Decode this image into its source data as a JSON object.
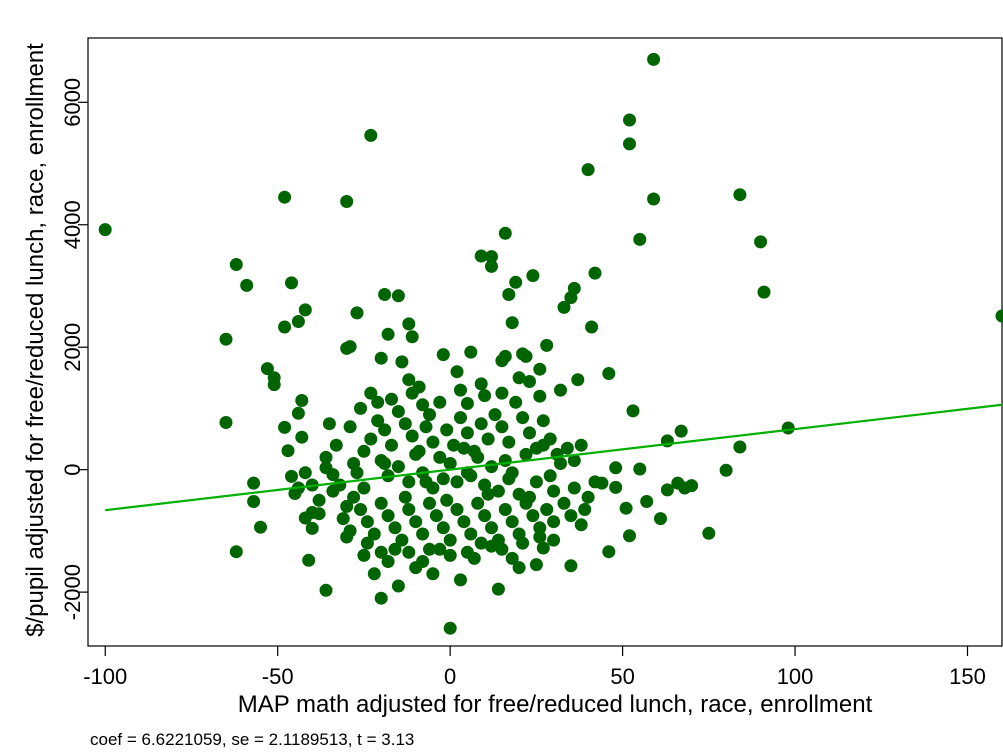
{
  "chart_data": {
    "type": "scatter",
    "title": "",
    "xlabel": "MAP math adjusted for free/reduced lunch, race, enrollment",
    "ylabel": "$/pupil adjusted for free/reduced lunch, race, enrollment",
    "note": "coef = 6.6221059, se = 2.1189513, t = 3.13",
    "xlim": [
      -105,
      160
    ],
    "ylim": [
      -2880,
      7050
    ],
    "xticks": [
      -100,
      -50,
      0,
      50,
      100,
      150
    ],
    "yticks": [
      -2000,
      0,
      2000,
      4000,
      6000
    ],
    "grid": false,
    "legend": "none",
    "colors": {
      "points": "#006400",
      "fit_line": "#00b000"
    },
    "fit_line": {
      "x": [
        -100,
        160
      ],
      "y": [
        -662,
        1060
      ]
    },
    "points": [
      [
        -100,
        3920
      ],
      [
        -62,
        3350
      ],
      [
        -59,
        3010
      ],
      [
        -65,
        2130
      ],
      [
        -65,
        770
      ],
      [
        -62,
        -1340
      ],
      [
        -57,
        -220
      ],
      [
        -57,
        -520
      ],
      [
        -55,
        -940
      ],
      [
        -53,
        1650
      ],
      [
        -51,
        1500
      ],
      [
        -51,
        1390
      ],
      [
        -48,
        4450
      ],
      [
        -46,
        3050
      ],
      [
        -44,
        2420
      ],
      [
        -42,
        2610
      ],
      [
        -48,
        2330
      ],
      [
        -48,
        690
      ],
      [
        -47,
        310
      ],
      [
        -46,
        -110
      ],
      [
        -45,
        -390
      ],
      [
        -44,
        920
      ],
      [
        -43,
        1130
      ],
      [
        -43,
        530
      ],
      [
        -42,
        -790
      ],
      [
        -41,
        -1480
      ],
      [
        -40,
        -960
      ],
      [
        -38,
        -720
      ],
      [
        -36,
        -1970
      ],
      [
        -35,
        750
      ],
      [
        -34,
        -80
      ],
      [
        -30,
        4380
      ],
      [
        -30,
        1980
      ],
      [
        -29,
        2010
      ],
      [
        -27,
        2560
      ],
      [
        -23,
        5460
      ],
      [
        -23,
        1250
      ],
      [
        -21,
        1100
      ],
      [
        -20,
        1820
      ],
      [
        -19,
        2860
      ],
      [
        -18,
        2210
      ],
      [
        -15,
        2840
      ],
      [
        -12,
        2380
      ],
      [
        -11,
        2170
      ],
      [
        -14,
        1760
      ],
      [
        -12,
        1470
      ],
      [
        -11,
        1250
      ],
      [
        -8,
        1060
      ],
      [
        -6,
        900
      ],
      [
        -2,
        1880
      ],
      [
        2,
        1600
      ],
      [
        5,
        1080
      ],
      [
        6,
        1920
      ],
      [
        9,
        3490
      ],
      [
        10,
        1210
      ],
      [
        12,
        3320
      ],
      [
        12,
        3480
      ],
      [
        15,
        1780
      ],
      [
        16,
        1850
      ],
      [
        16,
        3860
      ],
      [
        17,
        2860
      ],
      [
        18,
        2400
      ],
      [
        19,
        3060
      ],
      [
        21,
        1890
      ],
      [
        22,
        1850
      ],
      [
        23,
        1440
      ],
      [
        24,
        3170
      ],
      [
        26,
        1640
      ],
      [
        28,
        2030
      ],
      [
        33,
        2650
      ],
      [
        35,
        2810
      ],
      [
        36,
        2960
      ],
      [
        37,
        1470
      ],
      [
        40,
        4900
      ],
      [
        41,
        2330
      ],
      [
        42,
        3210
      ],
      [
        46,
        1570
      ],
      [
        52,
        5710
      ],
      [
        52,
        5320
      ],
      [
        53,
        960
      ],
      [
        55,
        3760
      ],
      [
        59,
        6700
      ],
      [
        59,
        4420
      ],
      [
        63,
        470
      ],
      [
        67,
        630
      ],
      [
        75,
        -1040
      ],
      [
        80,
        -10
      ],
      [
        84,
        4490
      ],
      [
        84,
        370
      ],
      [
        90,
        3720
      ],
      [
        91,
        2900
      ],
      [
        98,
        680
      ],
      [
        160,
        2510
      ],
      [
        0,
        -2590
      ],
      [
        -20,
        -2100
      ],
      [
        -15,
        -1900
      ],
      [
        -10,
        -1600
      ],
      [
        -5,
        -1700
      ],
      [
        3,
        -1800
      ],
      [
        14,
        -1950
      ],
      [
        20,
        -1600
      ],
      [
        25,
        -1550
      ],
      [
        35,
        -1570
      ],
      [
        46,
        -1340
      ],
      [
        52,
        -1080
      ],
      [
        -30,
        -1100
      ],
      [
        -25,
        -1400
      ],
      [
        -22,
        -1700
      ],
      [
        -18,
        -1500
      ],
      [
        -8,
        -1500
      ],
      [
        -3,
        -1300
      ],
      [
        7,
        -1450
      ],
      [
        12,
        -1250
      ],
      [
        18,
        -1450
      ],
      [
        27,
        -1280
      ],
      [
        30,
        -1150
      ],
      [
        44,
        -220
      ],
      [
        48,
        -290
      ],
      [
        51,
        -630
      ],
      [
        57,
        -520
      ],
      [
        61,
        -800
      ],
      [
        63,
        -330
      ],
      [
        66,
        -220
      ],
      [
        68,
        -300
      ],
      [
        70,
        -260
      ],
      [
        55,
        10
      ],
      [
        48,
        30
      ],
      [
        -25,
        300
      ],
      [
        -20,
        150
      ],
      [
        -18,
        -100
      ],
      [
        -15,
        50
      ],
      [
        -12,
        -200
      ],
      [
        -10,
        250
      ],
      [
        -8,
        -50
      ],
      [
        -5,
        -300
      ],
      [
        -2,
        -150
      ],
      [
        0,
        100
      ],
      [
        2,
        -200
      ],
      [
        4,
        350
      ],
      [
        6,
        -100
      ],
      [
        8,
        200
      ],
      [
        10,
        -250
      ],
      [
        12,
        50
      ],
      [
        14,
        -350
      ],
      [
        16,
        150
      ],
      [
        18,
        -50
      ],
      [
        20,
        -400
      ],
      [
        22,
        250
      ],
      [
        25,
        -200
      ],
      [
        27,
        400
      ],
      [
        30,
        -350
      ],
      [
        32,
        100
      ],
      [
        -28,
        -450
      ],
      [
        -26,
        -650
      ],
      [
        -24,
        -850
      ],
      [
        -22,
        -1050
      ],
      [
        -20,
        -550
      ],
      [
        -18,
        -750
      ],
      [
        -16,
        -950
      ],
      [
        -14,
        -1150
      ],
      [
        -12,
        -650
      ],
      [
        -10,
        -850
      ],
      [
        -8,
        -1050
      ],
      [
        -6,
        -550
      ],
      [
        -4,
        -750
      ],
      [
        -2,
        -950
      ],
      [
        0,
        -1150
      ],
      [
        2,
        -650
      ],
      [
        4,
        -850
      ],
      [
        6,
        -1050
      ],
      [
        8,
        -550
      ],
      [
        10,
        -750
      ],
      [
        12,
        -950
      ],
      [
        14,
        -1150
      ],
      [
        16,
        -650
      ],
      [
        18,
        -850
      ],
      [
        20,
        -1050
      ],
      [
        22,
        -550
      ],
      [
        24,
        -750
      ],
      [
        26,
        -950
      ],
      [
        28,
        -650
      ],
      [
        30,
        -850
      ],
      [
        33,
        -550
      ],
      [
        35,
        -750
      ],
      [
        -32,
        -250
      ],
      [
        -30,
        -600
      ],
      [
        -28,
        100
      ],
      [
        -25,
        -300
      ],
      [
        -23,
        500
      ],
      [
        -21,
        800
      ],
      [
        -19,
        650
      ],
      [
        -17,
        400
      ],
      [
        -15,
        950
      ],
      [
        -13,
        750
      ],
      [
        -11,
        550
      ],
      [
        -9,
        300
      ],
      [
        -7,
        700
      ],
      [
        -5,
        450
      ],
      [
        -3,
        200
      ],
      [
        -1,
        650
      ],
      [
        1,
        400
      ],
      [
        3,
        850
      ],
      [
        5,
        600
      ],
      [
        7,
        300
      ],
      [
        9,
        750
      ],
      [
        11,
        500
      ],
      [
        13,
        900
      ],
      [
        15,
        700
      ],
      [
        17,
        450
      ],
      [
        19,
        1100
      ],
      [
        21,
        850
      ],
      [
        23,
        600
      ],
      [
        25,
        350
      ],
      [
        27,
        800
      ],
      [
        29,
        500
      ],
      [
        31,
        250
      ],
      [
        34,
        350
      ],
      [
        36,
        150
      ],
      [
        38,
        400
      ],
      [
        -36,
        30
      ],
      [
        -34,
        -350
      ],
      [
        -38,
        -500
      ],
      [
        -40,
        -250
      ],
      [
        -24,
        -1200
      ],
      [
        -20,
        -1350
      ],
      [
        -16,
        -1300
      ],
      [
        -12,
        -1350
      ],
      [
        -6,
        -1300
      ],
      [
        0,
        -1400
      ],
      [
        5,
        -1350
      ],
      [
        9,
        -1200
      ],
      [
        15,
        -1300
      ],
      [
        21,
        -1200
      ],
      [
        26,
        -1100
      ],
      [
        -27,
        -50
      ],
      [
        -19,
        100
      ],
      [
        -13,
        -450
      ],
      [
        -7,
        -200
      ],
      [
        -1,
        -500
      ],
      [
        5,
        -50
      ],
      [
        11,
        -400
      ],
      [
        17,
        -150
      ],
      [
        23,
        -450
      ],
      [
        29,
        -100
      ],
      [
        -17,
        1150
      ],
      [
        -9,
        1350
      ],
      [
        -3,
        1100
      ],
      [
        3,
        1300
      ],
      [
        9,
        1400
      ],
      [
        15,
        1250
      ],
      [
        20,
        1500
      ],
      [
        26,
        1200
      ],
      [
        32,
        1300
      ],
      [
        -29,
        700
      ],
      [
        -26,
        1000
      ],
      [
        -33,
        400
      ],
      [
        -31,
        -800
      ],
      [
        -29,
        -1000
      ],
      [
        39,
        -650
      ],
      [
        36,
        -300
      ],
      [
        38,
        -900
      ],
      [
        40,
        -450
      ],
      [
        42,
        -200
      ],
      [
        -44,
        -300
      ],
      [
        -40,
        -700
      ],
      [
        -36,
        200
      ],
      [
        -42,
        -50
      ]
    ]
  }
}
